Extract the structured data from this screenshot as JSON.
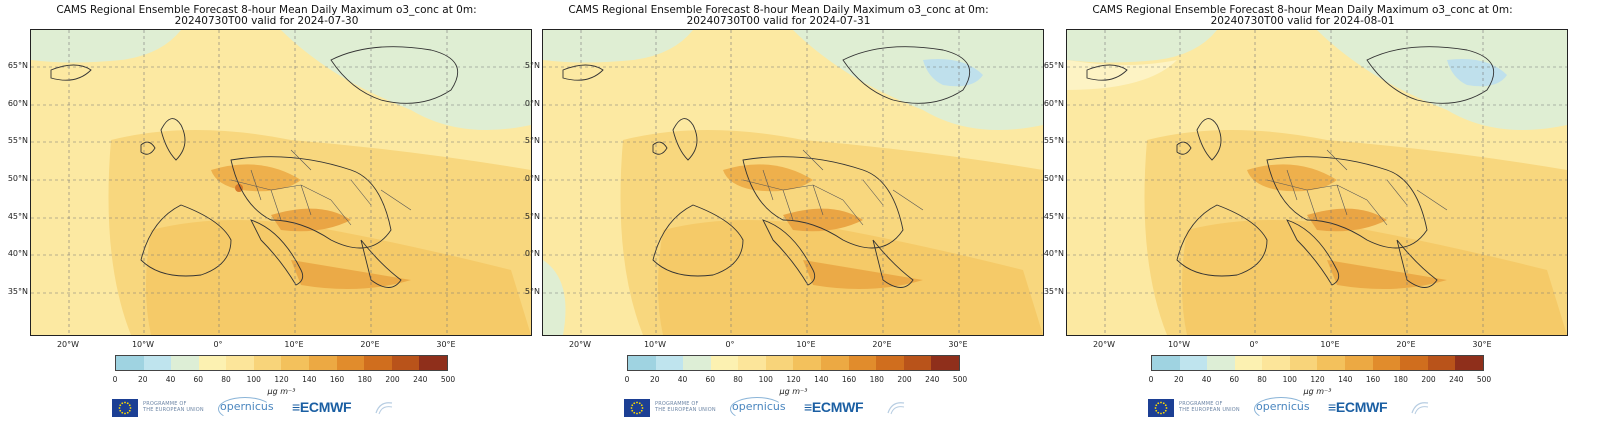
{
  "panels": [
    {
      "title_line1": "CAMS Regional Ensemble Forecast 8-hour Mean Daily Maximum o3_conc at 0m:",
      "title_line2": "20240730T00 valid for 2024-07-30"
    },
    {
      "title_line1": "CAMS Regional Ensemble Forecast 8-hour Mean Daily Maximum o3_conc at 0m:",
      "title_line2": "20240730T00 valid for 2024-07-31"
    },
    {
      "title_line1": "CAMS Regional Ensemble Forecast 8-hour Mean Daily Maximum o3_conc at 0m:",
      "title_line2": "20240730T00 valid for 2024-08-01"
    }
  ],
  "lat_labels": [
    "65°N",
    "60°N",
    "55°N",
    "50°N",
    "45°N",
    "40°N",
    "35°N"
  ],
  "panel2_lat_labels": [
    "5°N",
    "0°N",
    "5°N",
    "0°N",
    "5°N",
    "0°N",
    "5°N"
  ],
  "lon_labels": [
    "20°W",
    "10°W",
    "0°",
    "10°E",
    "20°E",
    "30°E"
  ],
  "colorbar": {
    "ticks": [
      "0",
      "20",
      "40",
      "60",
      "80",
      "100",
      "120",
      "140",
      "160",
      "180",
      "200",
      "240",
      "500"
    ],
    "colors": [
      "#9fd3e1",
      "#bfe4ee",
      "#ddeed6",
      "#fcf1b1",
      "#fce59a",
      "#f8d47a",
      "#f3c15c",
      "#eca943",
      "#e18c2c",
      "#d06e1e",
      "#b9531a",
      "#8f2f1b"
    ],
    "unit": "μg m⁻³"
  },
  "logos": {
    "eu_line1": "PROGRAMME OF",
    "eu_line2": "THE EUROPEAN UNION",
    "copernicus": "opernicus",
    "ecmwf": "ECMWF"
  }
}
